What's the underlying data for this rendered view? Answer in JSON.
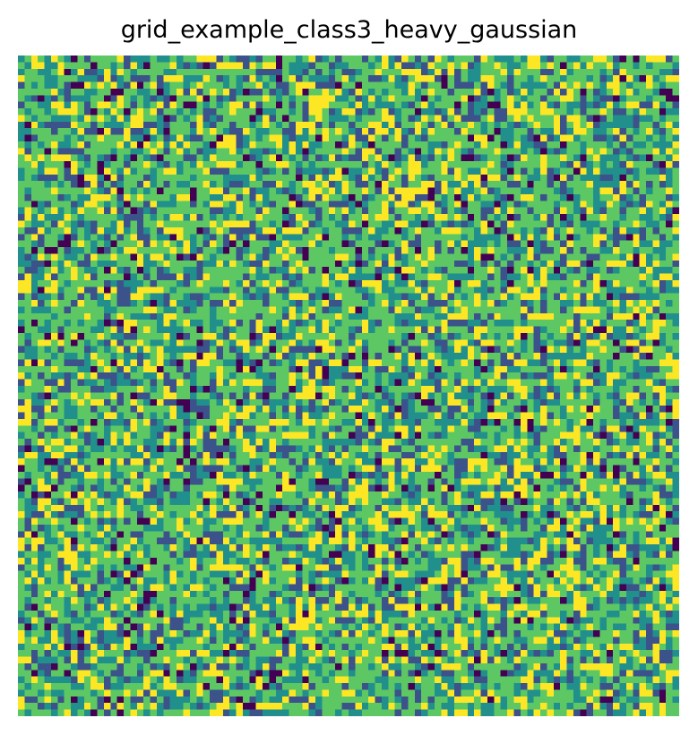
{
  "chart_data": {
    "type": "heatmap",
    "title": "grid_example_class3_heavy_gaussian",
    "rows": 100,
    "cols": 100,
    "levels": [
      0,
      1,
      2,
      3,
      4
    ],
    "level_weights": [
      0.05,
      0.15,
      0.22,
      0.38,
      0.2
    ],
    "colormap": [
      "#440154",
      "#3b528b",
      "#21908d",
      "#5dc863",
      "#fde725"
    ],
    "seed": 3,
    "axis": "off",
    "grid": false
  }
}
